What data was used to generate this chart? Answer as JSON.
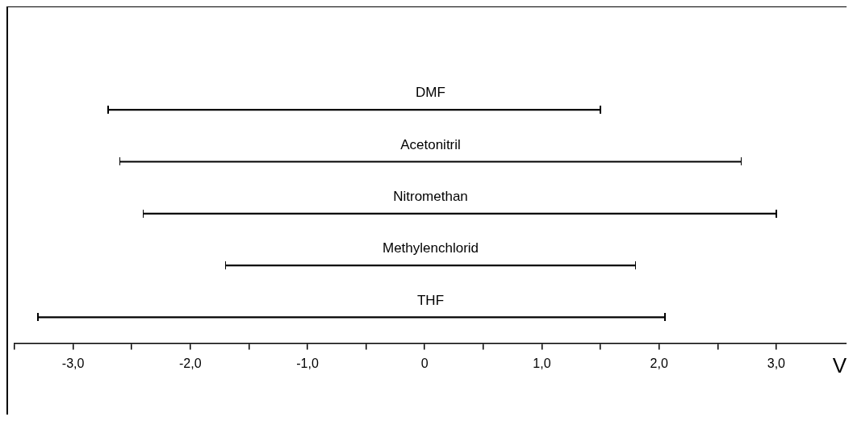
{
  "chart_data": {
    "type": "bar",
    "orientation": "horizontal",
    "xlabel": "V",
    "categories": [
      "DMF",
      "Acetonitril",
      "Nitromethan",
      "Methylenchlorid",
      "THF"
    ],
    "base": [
      -2.7,
      -2.6,
      -2.4,
      -1.7,
      -3.3
    ],
    "values": [
      4.2,
      5.3,
      5.4,
      3.5,
      5.35
    ],
    "color": "#000000",
    "xlim": [
      -3.5,
      3.6
    ],
    "xticks": [
      {
        "value": -3.5,
        "label": null
      },
      {
        "value": -3,
        "label": "-3,0"
      },
      {
        "value": -2.5,
        "label": null
      },
      {
        "value": -2,
        "label": "-2,0"
      },
      {
        "value": -1.5,
        "label": null
      },
      {
        "value": -1,
        "label": "-1,0"
      },
      {
        "value": -0.5,
        "label": null
      },
      0,
      {
        "value": 0.5,
        "label": null
      },
      {
        "value": 1,
        "label": "1,0"
      },
      {
        "value": 1.5,
        "label": null
      },
      {
        "value": 2,
        "label": "2,0"
      },
      {
        "value": 2.5,
        "label": null
      },
      {
        "value": 3,
        "label": "3,0"
      }
    ],
    "tick_labels": "x",
    "grid": false,
    "legend": false
  }
}
